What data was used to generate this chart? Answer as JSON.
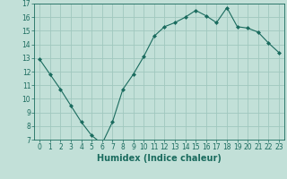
{
  "x": [
    0,
    1,
    2,
    3,
    4,
    5,
    6,
    7,
    8,
    9,
    10,
    11,
    12,
    13,
    14,
    15,
    16,
    17,
    18,
    19,
    20,
    21,
    22,
    23
  ],
  "y": [
    12.9,
    11.8,
    10.7,
    9.5,
    8.3,
    7.3,
    6.7,
    8.3,
    10.7,
    11.8,
    13.1,
    14.6,
    15.3,
    15.6,
    16.0,
    16.5,
    16.1,
    15.6,
    16.7,
    15.3,
    15.2,
    14.9,
    14.1,
    13.4
  ],
  "line_color": "#1a6b5e",
  "marker": "D",
  "marker_size": 2.0,
  "bg_color": "#c2e0d8",
  "grid_color": "#a0c8be",
  "xlabel": "Humidex (Indice chaleur)",
  "font_color": "#1a6b5e",
  "ylim": [
    7,
    17
  ],
  "xlim": [
    -0.5,
    23.5
  ],
  "yticks": [
    7,
    8,
    9,
    10,
    11,
    12,
    13,
    14,
    15,
    16,
    17
  ],
  "xticks": [
    0,
    1,
    2,
    3,
    4,
    5,
    6,
    7,
    8,
    9,
    10,
    11,
    12,
    13,
    14,
    15,
    16,
    17,
    18,
    19,
    20,
    21,
    22,
    23
  ],
  "tick_fontsize": 5.5,
  "xlabel_fontsize": 7.0,
  "linewidth": 0.8
}
